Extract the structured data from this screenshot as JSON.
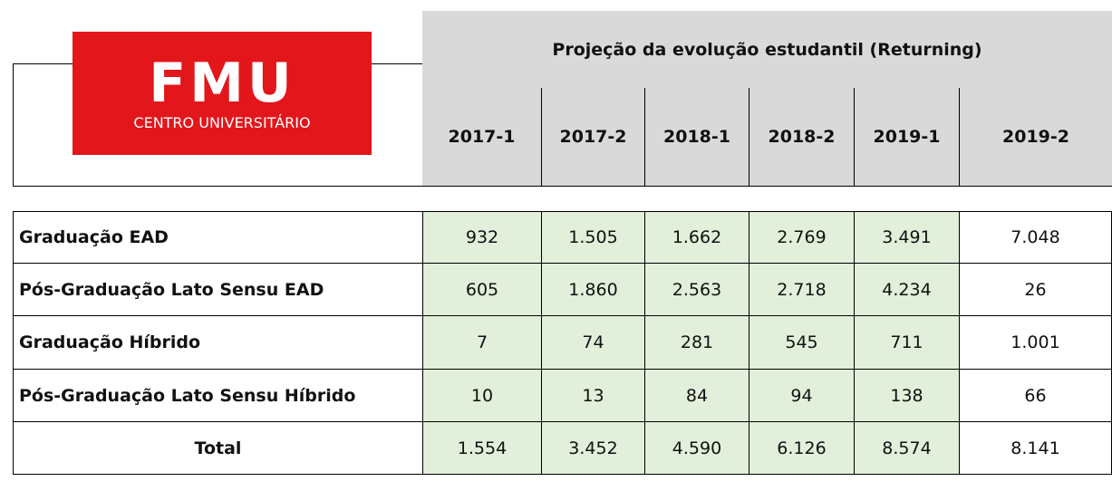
{
  "logo": {
    "name": "FMU",
    "subtitle": "CENTRO UNIVERSITÁRIO"
  },
  "header": {
    "title": "Projeção da evolução estudantil (Returning)",
    "periods": [
      "2017-1",
      "2017-2",
      "2018-1",
      "2018-2",
      "2019-1",
      "2019-2"
    ]
  },
  "table": {
    "rows": [
      {
        "label": "Graduação EAD",
        "values": [
          "932",
          "1.505",
          "1.662",
          "2.769",
          "3.491",
          "7.048"
        ]
      },
      {
        "label": "Pós-Graduação Lato Sensu EAD",
        "values": [
          "605",
          "1.860",
          "2.563",
          "2.718",
          "4.234",
          "26"
        ]
      },
      {
        "label": "Graduação Híbrido",
        "values": [
          "7",
          "74",
          "281",
          "545",
          "711",
          "1.001"
        ]
      },
      {
        "label": "Pós-Graduação Lato Sensu Híbrido",
        "values": [
          "10",
          "13",
          "84",
          "94",
          "138",
          "66"
        ]
      }
    ],
    "total": {
      "label": "Total",
      "values": [
        "1.554",
        "3.452",
        "4.590",
        "6.126",
        "8.574",
        "8.141"
      ]
    }
  }
}
